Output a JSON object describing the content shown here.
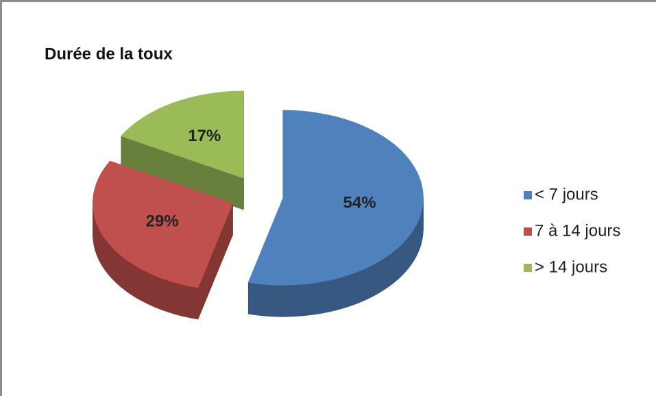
{
  "chart_data": {
    "type": "pie",
    "title": "Durée de la toux",
    "categories": [
      "< 7 jours",
      "7 à 14 jours",
      "> 14 jours"
    ],
    "values": [
      54,
      29,
      17
    ],
    "value_labels": [
      "54%",
      "29%",
      "17%"
    ],
    "colors": [
      "#4f81bd",
      "#c0504d",
      "#9bbb59"
    ],
    "legend": "right"
  }
}
